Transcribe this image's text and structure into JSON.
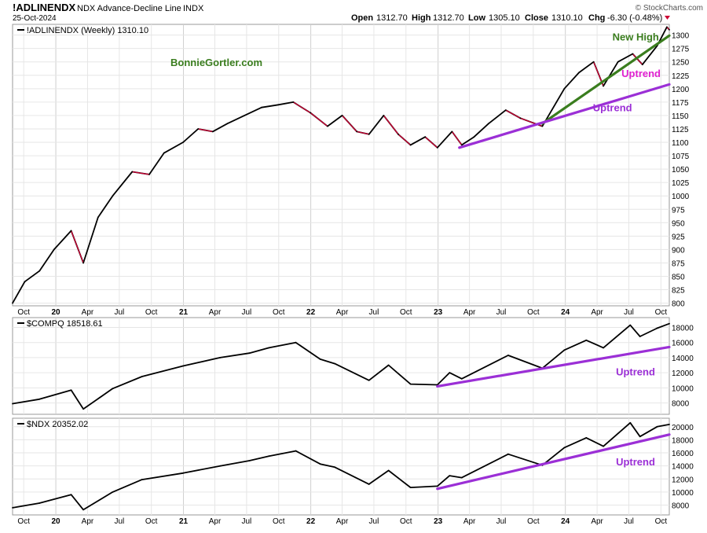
{
  "header": {
    "symbol": "!ADLINENDX",
    "description": "NDX Advance-Decline Line",
    "exchange": "INDX",
    "date": "25-Oct-2024",
    "watermark": "© StockCharts.com",
    "open_label": "Open",
    "open": "1312.70",
    "high_label": "High",
    "high": "1312.70",
    "low_label": "Low",
    "low": "1305.10",
    "close_label": "Close",
    "close": "1310.10",
    "chg_label": "Chg",
    "chg": "-6.30 (-0.48%)"
  },
  "colors": {
    "price_line": "#000000",
    "down_segment": "#cc0033",
    "trend_green": "#3a7d1e",
    "trend_purple": "#9b2fd6",
    "label_magenta": "#e020d0",
    "label_purple": "#9b2fd6",
    "label_green": "#3a7d1e",
    "gridline": "#e6e6e6",
    "axis": "#000000"
  },
  "x_axis_labels": [
    "Oct",
    "20",
    "Apr",
    "Jul",
    "Oct",
    "21",
    "Apr",
    "Jul",
    "Oct",
    "22",
    "Apr",
    "Jul",
    "Oct",
    "23",
    "Apr",
    "Jul",
    "Oct",
    "24",
    "Apr",
    "Jul",
    "Oct"
  ],
  "chart_data": [
    {
      "type": "line",
      "legend": "!ADLINENDX (Weekly) 1310.10",
      "watermark_text": "BonnieGortler.com",
      "ylim": [
        795,
        1320
      ],
      "y_ticks": [
        800,
        825,
        850,
        875,
        900,
        925,
        950,
        975,
        1000,
        1025,
        1050,
        1075,
        1100,
        1125,
        1150,
        1175,
        1200,
        1225,
        1250,
        1275,
        1300
      ],
      "x_start": "2019-08-30",
      "x_end": "2024-10-25",
      "series": [
        {
          "x": [
            "2019-08-30",
            "2019-10-04",
            "2019-11-15",
            "2019-12-27",
            "2020-02-14",
            "2020-03-20",
            "2020-05-01",
            "2020-06-12",
            "2020-08-07",
            "2020-09-25",
            "2020-11-06",
            "2020-12-31",
            "2021-02-12",
            "2021-03-26",
            "2021-05-07",
            "2021-06-25",
            "2021-08-13",
            "2021-09-30",
            "2021-11-12",
            "2021-12-31",
            "2022-02-18",
            "2022-04-01",
            "2022-05-13",
            "2022-06-17",
            "2022-07-29",
            "2022-09-09",
            "2022-10-14",
            "2022-11-25",
            "2022-12-30",
            "2023-02-10",
            "2023-03-10",
            "2023-04-14",
            "2023-05-26",
            "2023-07-14",
            "2023-08-25",
            "2023-10-27",
            "2023-12-29",
            "2024-02-09",
            "2024-03-22",
            "2024-04-19",
            "2024-05-31",
            "2024-07-12",
            "2024-08-09",
            "2024-09-20",
            "2024-10-18",
            "2024-10-25"
          ],
          "y": [
            800,
            840,
            860,
            900,
            935,
            875,
            960,
            1000,
            1045,
            1040,
            1080,
            1100,
            1125,
            1120,
            1135,
            1150,
            1165,
            1170,
            1175,
            1155,
            1130,
            1150,
            1120,
            1115,
            1150,
            1115,
            1095,
            1110,
            1090,
            1120,
            1095,
            1110,
            1135,
            1160,
            1145,
            1130,
            1200,
            1230,
            1250,
            1205,
            1250,
            1265,
            1245,
            1280,
            1315,
            1310
          ]
        }
      ],
      "annotations": [
        {
          "text": "New High",
          "color": "#3a7d1e",
          "x": "2024-05-15",
          "y": 1290
        },
        {
          "text": "Uptrend",
          "color": "#e020d0",
          "x": "2024-06-10",
          "y": 1222
        },
        {
          "text": "Uptrend",
          "color": "#9b2fd6",
          "x": "2024-03-20",
          "y": 1158
        }
      ],
      "trendlines": [
        {
          "color": "#3a7d1e",
          "from": {
            "x": "2023-10-27",
            "y": 1135
          },
          "to": {
            "x": "2024-10-25",
            "y": 1299
          }
        },
        {
          "color": "#9b2fd6",
          "from": {
            "x": "2023-03-03",
            "y": 1090
          },
          "to": {
            "x": "2024-10-25",
            "y": 1208
          }
        }
      ]
    },
    {
      "type": "line",
      "legend": "$COMPQ 18518.61",
      "ylim": [
        6500,
        19300
      ],
      "y_ticks": [
        8000,
        10000,
        12000,
        14000,
        16000,
        18000
      ],
      "series": [
        {
          "x": [
            "2019-08-30",
            "2019-11-15",
            "2020-02-14",
            "2020-03-20",
            "2020-06-12",
            "2020-09-04",
            "2020-12-31",
            "2021-04-16",
            "2021-07-09",
            "2021-09-03",
            "2021-11-19",
            "2022-01-28",
            "2022-03-11",
            "2022-06-17",
            "2022-08-12",
            "2022-10-14",
            "2022-12-30",
            "2023-02-03",
            "2023-03-10",
            "2023-07-21",
            "2023-10-27",
            "2023-12-29",
            "2024-03-01",
            "2024-04-19",
            "2024-07-05",
            "2024-08-02",
            "2024-09-20",
            "2024-10-25"
          ],
          "y": [
            7900,
            8500,
            9700,
            7200,
            9900,
            11500,
            12900,
            14000,
            14600,
            15300,
            16000,
            13800,
            13200,
            11000,
            13000,
            10500,
            10400,
            12000,
            11200,
            14300,
            12600,
            15000,
            16300,
            15300,
            18300,
            16800,
            17900,
            18500
          ]
        }
      ],
      "annotations": [
        {
          "text": "Uptrend",
          "color": "#9b2fd6",
          "x": "2024-05-25",
          "y": 11650
        }
      ],
      "trendlines": [
        {
          "color": "#9b2fd6",
          "from": {
            "x": "2022-12-30",
            "y": 10200
          },
          "to": {
            "x": "2024-10-25",
            "y": 15400
          }
        }
      ]
    },
    {
      "type": "line",
      "legend": "$NDX 20352.02",
      "ylim": [
        6500,
        21300
      ],
      "y_ticks": [
        8000,
        10000,
        12000,
        14000,
        16000,
        18000,
        20000
      ],
      "series": [
        {
          "x": [
            "2019-08-30",
            "2019-11-15",
            "2020-02-14",
            "2020-03-20",
            "2020-06-12",
            "2020-09-04",
            "2020-12-31",
            "2021-04-16",
            "2021-07-09",
            "2021-09-03",
            "2021-11-19",
            "2022-01-28",
            "2022-03-11",
            "2022-06-17",
            "2022-08-12",
            "2022-10-14",
            "2022-12-30",
            "2023-02-03",
            "2023-03-10",
            "2023-07-21",
            "2023-10-27",
            "2023-12-29",
            "2024-03-01",
            "2024-04-19",
            "2024-07-05",
            "2024-08-02",
            "2024-09-20",
            "2024-10-25"
          ],
          "y": [
            7600,
            8300,
            9600,
            7300,
            10000,
            11900,
            12900,
            14000,
            14800,
            15500,
            16300,
            14300,
            13800,
            11200,
            13300,
            10700,
            10900,
            12500,
            12200,
            15800,
            14100,
            16800,
            18300,
            17000,
            20600,
            18500,
            20000,
            20350
          ]
        }
      ],
      "annotations": [
        {
          "text": "Uptrend",
          "color": "#9b2fd6",
          "x": "2024-05-25",
          "y": 14100
        }
      ],
      "trendlines": [
        {
          "color": "#9b2fd6",
          "from": {
            "x": "2022-12-30",
            "y": 10500
          },
          "to": {
            "x": "2024-10-25",
            "y": 18800
          }
        }
      ]
    }
  ]
}
